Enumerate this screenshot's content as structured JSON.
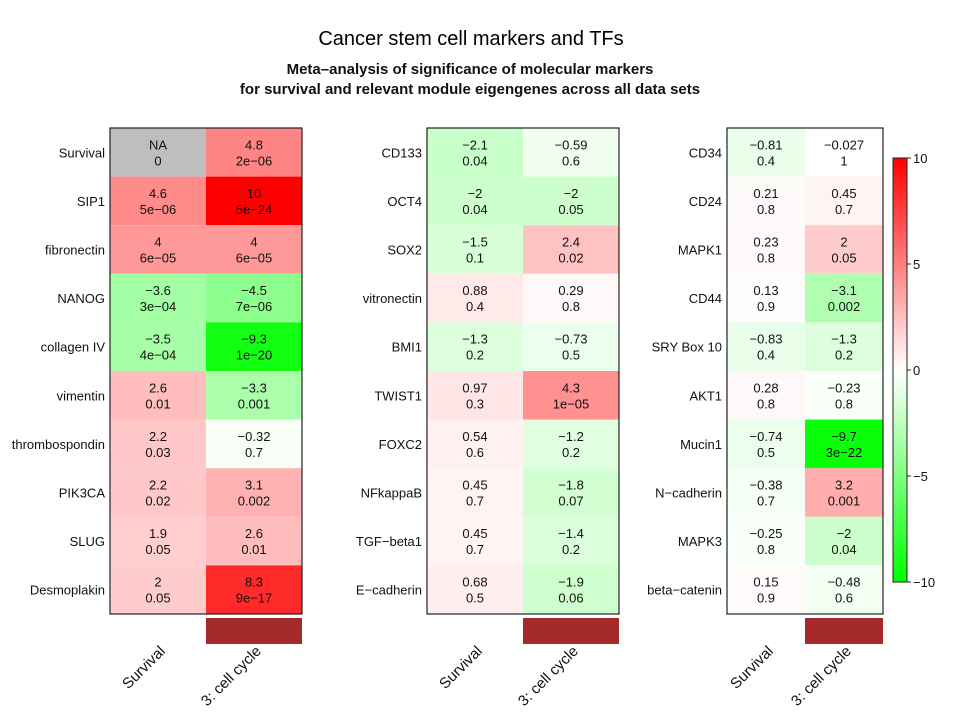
{
  "page_title": "Cancer stem cell markers and TFs",
  "chart_data": {
    "type": "heatmap",
    "title": "Meta–analysis of significance of molecular markers",
    "subtitle": "for survival and relevant module eigengenes across all data sets",
    "columns": [
      "Survival",
      "3: cell cycle"
    ],
    "module_color": "#a52a2a",
    "na_color": "#bebebe",
    "color_scale": {
      "low": "#00ff00",
      "mid": "#ffffff",
      "high": "#ff0000",
      "range": [
        -10,
        10
      ],
      "ticks": [
        "10",
        "5",
        "0",
        "−5",
        "−10"
      ]
    },
    "panels": [
      {
        "rows": [
          "Survival",
          "SIP1",
          "fibronectin",
          "NANOG",
          "collagen IV",
          "vimentin",
          "thrombospondin",
          "PIK3CA",
          "SLUG",
          "Desmoplakin"
        ],
        "cells": [
          [
            {
              "z": null,
              "label": "NA",
              "p": "0"
            },
            {
              "z": 4.8,
              "label": "4.8",
              "p": "2e−06"
            }
          ],
          [
            {
              "z": 4.6,
              "label": "4.6",
              "p": "5e−06"
            },
            {
              "z": 10,
              "label": "10",
              "p": "5e−24"
            }
          ],
          [
            {
              "z": 4,
              "label": "4",
              "p": "6e−05"
            },
            {
              "z": 4,
              "label": "4",
              "p": "6e−05"
            }
          ],
          [
            {
              "z": -3.6,
              "label": "−3.6",
              "p": "3e−04"
            },
            {
              "z": -4.5,
              "label": "−4.5",
              "p": "7e−06"
            }
          ],
          [
            {
              "z": -3.5,
              "label": "−3.5",
              "p": "4e−04"
            },
            {
              "z": -9.3,
              "label": "−9.3",
              "p": "1e−20"
            }
          ],
          [
            {
              "z": 2.6,
              "label": "2.6",
              "p": "0.01"
            },
            {
              "z": -3.3,
              "label": "−3.3",
              "p": "0.001"
            }
          ],
          [
            {
              "z": 2.2,
              "label": "2.2",
              "p": "0.03"
            },
            {
              "z": -0.32,
              "label": "−0.32",
              "p": "0.7"
            }
          ],
          [
            {
              "z": 2.2,
              "label": "2.2",
              "p": "0.02"
            },
            {
              "z": 3.1,
              "label": "3.1",
              "p": "0.002"
            }
          ],
          [
            {
              "z": 1.9,
              "label": "1.9",
              "p": "0.05"
            },
            {
              "z": 2.6,
              "label": "2.6",
              "p": "0.01"
            }
          ],
          [
            {
              "z": 2,
              "label": "2",
              "p": "0.05"
            },
            {
              "z": 8.3,
              "label": "8.3",
              "p": "9e−17"
            }
          ]
        ]
      },
      {
        "rows": [
          "CD133",
          "OCT4",
          "SOX2",
          "vitronectin",
          "BMI1",
          "TWIST1",
          "FOXC2",
          "NFkappaB",
          "TGF−beta1",
          "E−cadherin"
        ],
        "cells": [
          [
            {
              "z": -2.1,
              "label": "−2.1",
              "p": "0.04"
            },
            {
              "z": -0.59,
              "label": "−0.59",
              "p": "0.6"
            }
          ],
          [
            {
              "z": -2,
              "label": "−2",
              "p": "0.04"
            },
            {
              "z": -2,
              "label": "−2",
              "p": "0.05"
            }
          ],
          [
            {
              "z": -1.5,
              "label": "−1.5",
              "p": "0.1"
            },
            {
              "z": 2.4,
              "label": "2.4",
              "p": "0.02"
            }
          ],
          [
            {
              "z": 0.88,
              "label": "0.88",
              "p": "0.4"
            },
            {
              "z": 0.29,
              "label": "0.29",
              "p": "0.8"
            }
          ],
          [
            {
              "z": -1.3,
              "label": "−1.3",
              "p": "0.2"
            },
            {
              "z": -0.73,
              "label": "−0.73",
              "p": "0.5"
            }
          ],
          [
            {
              "z": 0.97,
              "label": "0.97",
              "p": "0.3"
            },
            {
              "z": 4.3,
              "label": "4.3",
              "p": "1e−05"
            }
          ],
          [
            {
              "z": 0.54,
              "label": "0.54",
              "p": "0.6"
            },
            {
              "z": -1.2,
              "label": "−1.2",
              "p": "0.2"
            }
          ],
          [
            {
              "z": 0.45,
              "label": "0.45",
              "p": "0.7"
            },
            {
              "z": -1.8,
              "label": "−1.8",
              "p": "0.07"
            }
          ],
          [
            {
              "z": 0.45,
              "label": "0.45",
              "p": "0.7"
            },
            {
              "z": -1.4,
              "label": "−1.4",
              "p": "0.2"
            }
          ],
          [
            {
              "z": 0.68,
              "label": "0.68",
              "p": "0.5"
            },
            {
              "z": -1.9,
              "label": "−1.9",
              "p": "0.06"
            }
          ]
        ]
      },
      {
        "rows": [
          "CD34",
          "CD24",
          "MAPK1",
          "CD44",
          "SRY Box 10",
          "AKT1",
          "Mucin1",
          "N−cadherin",
          "MAPK3",
          "beta−catenin"
        ],
        "cells": [
          [
            {
              "z": -0.81,
              "label": "−0.81",
              "p": "0.4"
            },
            {
              "z": -0.027,
              "label": "−0.027",
              "p": "1"
            }
          ],
          [
            {
              "z": 0.21,
              "label": "0.21",
              "p": "0.8"
            },
            {
              "z": 0.45,
              "label": "0.45",
              "p": "0.7"
            }
          ],
          [
            {
              "z": 0.23,
              "label": "0.23",
              "p": "0.8"
            },
            {
              "z": 2,
              "label": "2",
              "p": "0.05"
            }
          ],
          [
            {
              "z": 0.13,
              "label": "0.13",
              "p": "0.9"
            },
            {
              "z": -3.1,
              "label": "−3.1",
              "p": "0.002"
            }
          ],
          [
            {
              "z": -0.83,
              "label": "−0.83",
              "p": "0.4"
            },
            {
              "z": -1.3,
              "label": "−1.3",
              "p": "0.2"
            }
          ],
          [
            {
              "z": 0.28,
              "label": "0.28",
              "p": "0.8"
            },
            {
              "z": -0.23,
              "label": "−0.23",
              "p": "0.8"
            }
          ],
          [
            {
              "z": -0.74,
              "label": "−0.74",
              "p": "0.5"
            },
            {
              "z": -9.7,
              "label": "−9.7",
              "p": "3e−22"
            }
          ],
          [
            {
              "z": -0.38,
              "label": "−0.38",
              "p": "0.7"
            },
            {
              "z": 3.2,
              "label": "3.2",
              "p": "0.001"
            }
          ],
          [
            {
              "z": -0.25,
              "label": "−0.25",
              "p": "0.8"
            },
            {
              "z": -2,
              "label": "−2",
              "p": "0.04"
            }
          ],
          [
            {
              "z": 0.15,
              "label": "0.15",
              "p": "0.9"
            },
            {
              "z": -0.48,
              "label": "−0.48",
              "p": "0.6"
            }
          ]
        ]
      }
    ]
  }
}
